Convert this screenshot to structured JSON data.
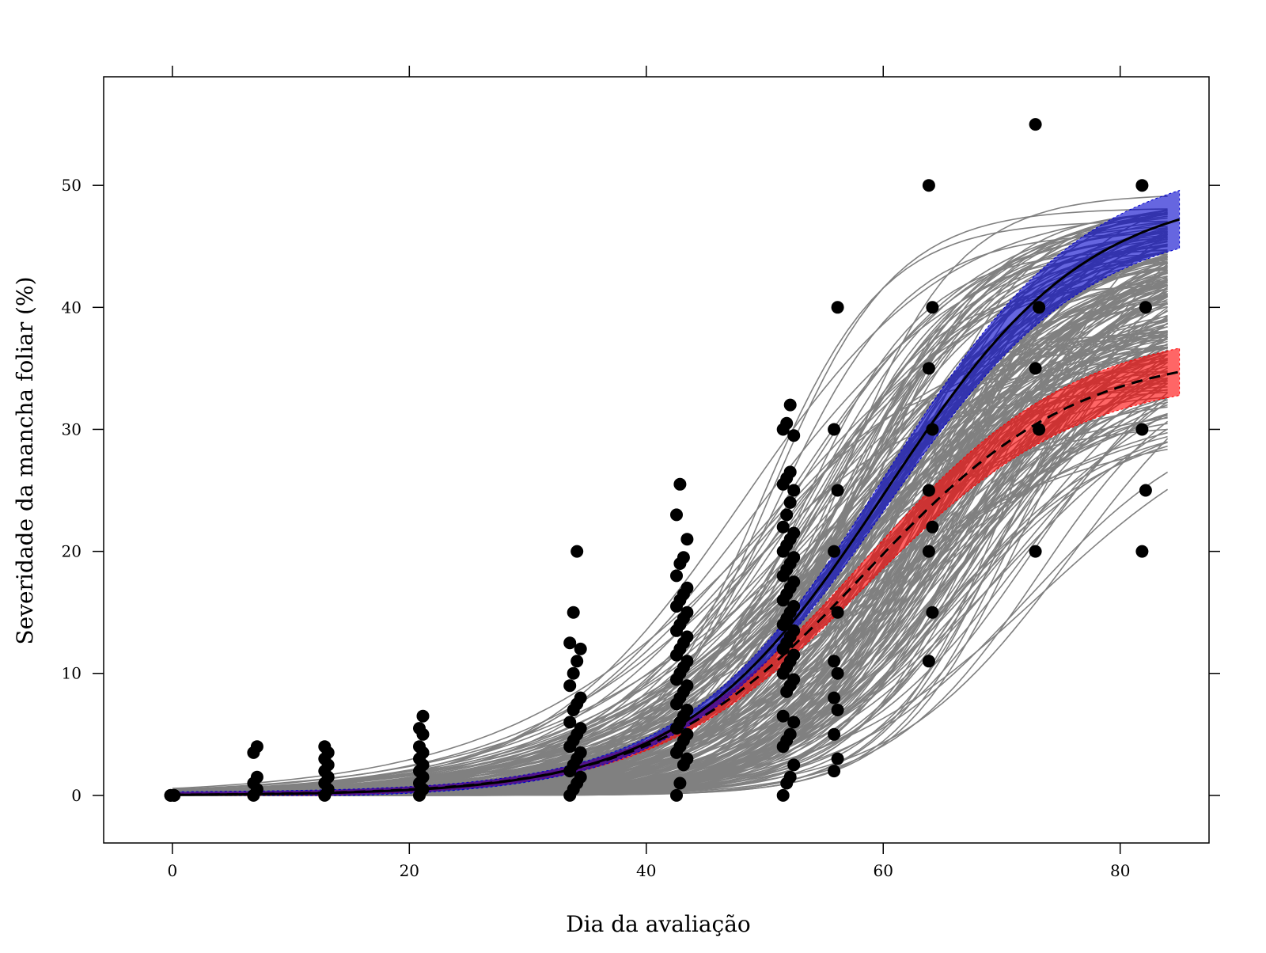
{
  "chart_data": {
    "type": "line",
    "title": "",
    "xlabel": "Dia da avaliação",
    "ylabel": "Severidade da mancha foliar (%)",
    "xlim": [
      -5.8,
      87.5
    ],
    "ylim": [
      -3.9,
      58.9
    ],
    "x_ticks": [
      0,
      20,
      40,
      60,
      80
    ],
    "y_ticks": [
      0,
      10,
      20,
      30,
      40,
      50
    ],
    "grid": false,
    "legend": "none",
    "colors": {
      "individual_curves": "#808080",
      "points": "#000000",
      "fit_solid": "#000000",
      "band_solid": "#0000cc",
      "fit_dashed": "#000000",
      "band_dashed": "#ff0000"
    },
    "series": [
      {
        "kind": "individual-fitted-curves",
        "count": 250,
        "x_range": [
          0,
          84
        ],
        "asymptote_range": [
          30,
          49.5
        ],
        "midpoint_range": [
          44,
          78
        ],
        "rate_range": [
          0.08,
          0.2
        ]
      },
      {
        "kind": "observed-points",
        "groups": [
          {
            "day": 0,
            "values": [
              0,
              0,
              0,
              0
            ]
          },
          {
            "day": 7,
            "values": [
              0,
              0.5,
              1,
              1.5,
              3.5,
              4
            ]
          },
          {
            "day": 13,
            "values": [
              0,
              0.5,
              1,
              1.5,
              2,
              2.5,
              3,
              3.5,
              4
            ]
          },
          {
            "day": 21,
            "values": [
              0,
              0.5,
              1,
              1.5,
              2,
              2.5,
              3,
              3.5,
              4,
              5,
              5.5,
              6.5
            ]
          },
          {
            "day": 34,
            "values": [
              0,
              0.5,
              1,
              1.5,
              2,
              2.5,
              3,
              3.5,
              4,
              4.5,
              5,
              5.5,
              6,
              7,
              7.5,
              8,
              9,
              10,
              11,
              12,
              12.5,
              15,
              20
            ]
          },
          {
            "day": 43,
            "values": [
              0,
              1,
              2.5,
              3,
              3.5,
              4,
              4.5,
              5,
              5.5,
              6,
              6.5,
              7,
              7.5,
              8,
              8.5,
              9,
              9.5,
              10,
              10.5,
              11,
              11.5,
              12,
              12.5,
              13,
              13.5,
              14,
              14.5,
              15,
              15.5,
              16,
              16.5,
              17,
              18,
              19,
              19.5,
              21,
              23,
              25.5
            ]
          },
          {
            "day": 52,
            "values": [
              0,
              1,
              1.5,
              2.5,
              4,
              4.5,
              5,
              6,
              6.5,
              8.5,
              9,
              9.5,
              10,
              10.5,
              11,
              11.5,
              12,
              12.5,
              13,
              13.5,
              14,
              14.5,
              15,
              15.5,
              16,
              16.5,
              17,
              17.5,
              18,
              18.5,
              19,
              19.5,
              20,
              20.5,
              21,
              21.5,
              22,
              23,
              24,
              25,
              25.5,
              26,
              26.5,
              29.5,
              30,
              30.5,
              32
            ]
          },
          {
            "day": 56,
            "values": [
              2,
              3,
              5,
              7,
              8,
              10,
              11,
              15,
              20,
              25,
              30,
              40
            ]
          },
          {
            "day": 64,
            "values": [
              11,
              15,
              20,
              22,
              25,
              30,
              35,
              40,
              50
            ]
          },
          {
            "day": 73,
            "values": [
              20,
              30,
              35,
              40,
              55
            ]
          },
          {
            "day": 82,
            "values": [
              20,
              25,
              30,
              40,
              50
            ]
          }
        ]
      },
      {
        "kind": "fitted-curve-solid",
        "model": "logistic",
        "asymptote": 49.8,
        "midpoint": 60.2,
        "rate": 0.117,
        "band": "blue"
      },
      {
        "kind": "fitted-curve-dashed",
        "model": "logistic",
        "asymptote": 36.5,
        "midpoint": 58.5,
        "rate": 0.112,
        "band": "red"
      }
    ]
  }
}
